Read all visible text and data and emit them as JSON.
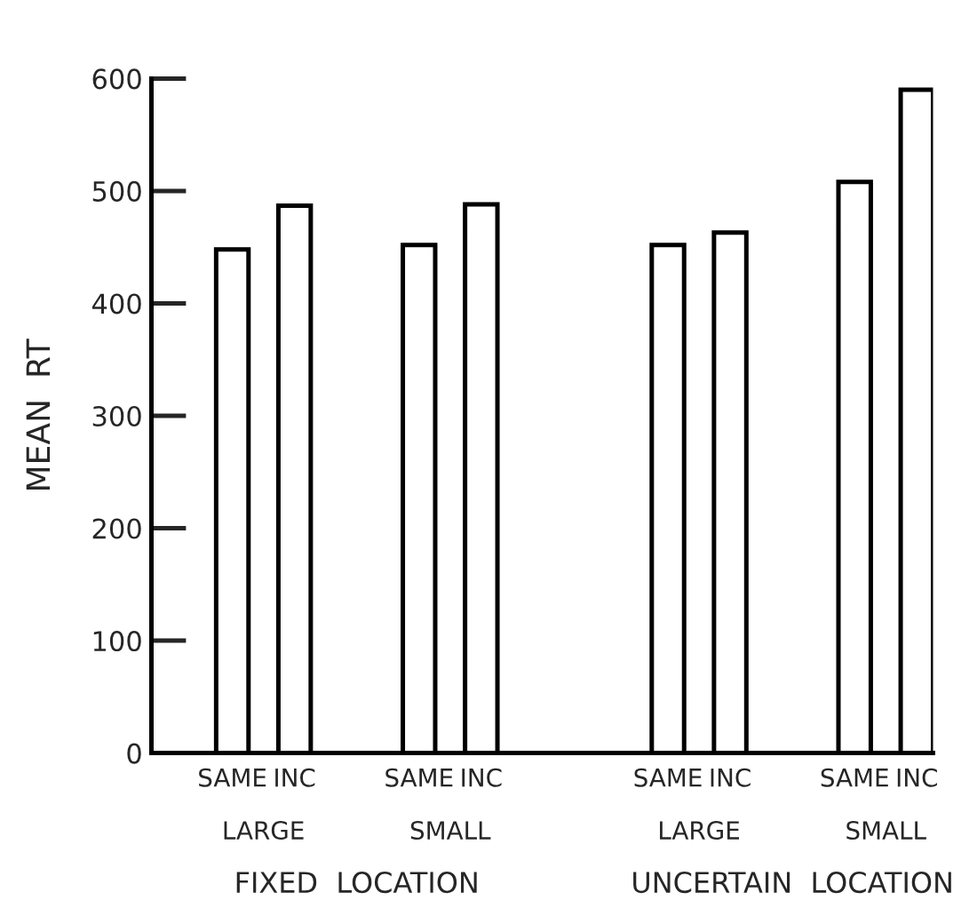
{
  "chart_data": {
    "type": "bar",
    "ylabel": "MEAN  RT",
    "categories": [
      "SAME",
      "INC",
      null,
      "SAME",
      "INC",
      null,
      null,
      "SAME",
      "INC",
      null,
      "SAME",
      "INC"
    ],
    "values": [
      448,
      487,
      null,
      452,
      488,
      null,
      null,
      452,
      463,
      null,
      508,
      590
    ],
    "color": "#ffffff",
    "ylim": [
      0,
      600
    ],
    "yticks": [
      0,
      100,
      200,
      300,
      400,
      500,
      600
    ],
    "grid": false,
    "annotations": [
      "LARGE",
      "SMALL",
      "LARGE",
      "SMALL",
      "FIXED  LOCATION",
      "UNCERTAIN  LOCATION"
    ]
  }
}
